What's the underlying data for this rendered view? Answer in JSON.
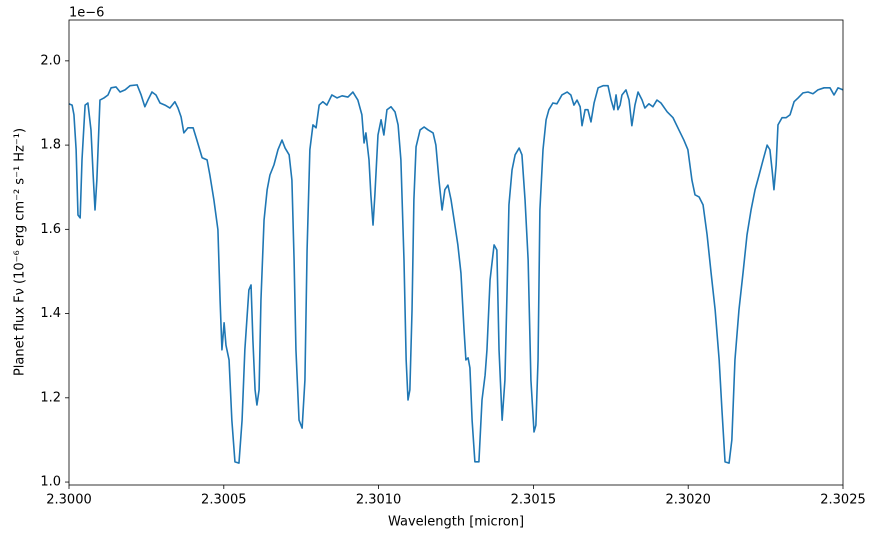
{
  "chart_data": {
    "type": "line",
    "xlabel": "Wavelength [micron]",
    "ylabel": "Planet flux Fν (10⁻⁶ erg cm⁻² s⁻¹ Hz⁻¹)",
    "y_offset_text": "1e−6",
    "color": "#1f77b4",
    "xlim": [
      2.3,
      2.3025
    ],
    "ylim": [
      0.993,
      2.097
    ],
    "xticks": [
      {
        "value": 2.3,
        "label": "2.3000"
      },
      {
        "value": 2.3005,
        "label": "2.3005"
      },
      {
        "value": 2.301,
        "label": "2.3010"
      },
      {
        "value": 2.3015,
        "label": "2.3015"
      },
      {
        "value": 2.302,
        "label": "2.3020"
      },
      {
        "value": 2.3025,
        "label": "2.3025"
      }
    ],
    "yticks": [
      {
        "value": 1,
        "label": "1.0"
      },
      1.2,
      1.4,
      1.6,
      1.8,
      {
        "value": 2,
        "label": "2.0"
      }
    ],
    "x": [
      2.3,
      2.30001,
      2.300016,
      2.300023,
      2.300029,
      2.300036,
      2.300042,
      2.300052,
      2.300061,
      2.300071,
      2.300078,
      2.300084,
      2.30009,
      2.3001,
      2.300113,
      2.300126,
      2.300136,
      2.300152,
      2.300165,
      2.300181,
      2.300197,
      2.30022,
      2.300233,
      2.300245,
      2.300255,
      2.300268,
      2.300281,
      2.300294,
      2.30031,
      2.300326,
      2.300342,
      2.300352,
      2.300362,
      2.300371,
      2.300384,
      2.300401,
      2.300413,
      2.30043,
      2.300446,
      2.300455,
      2.300468,
      2.300481,
      2.300488,
      2.300494,
      2.300501,
      2.300507,
      2.300517,
      2.300526,
      2.300536,
      2.300549,
      2.300559,
      2.300568,
      2.300581,
      2.300588,
      2.300594,
      2.300601,
      2.300607,
      2.300614,
      2.30062,
      2.30063,
      2.30064,
      2.300649,
      2.300662,
      2.300675,
      2.300688,
      2.300698,
      2.300711,
      2.30072,
      2.300727,
      2.300733,
      2.300743,
      2.300753,
      2.300762,
      2.300769,
      2.300778,
      2.300788,
      2.300798,
      2.300808,
      2.30082,
      2.300833,
      2.300849,
      2.300866,
      2.300882,
      2.300901,
      2.300917,
      2.300933,
      2.300946,
      2.300953,
      2.300959,
      2.300969,
      2.300975,
      2.300982,
      2.300988,
      2.300998,
      2.301008,
      2.301017,
      2.301027,
      2.30104,
      2.301053,
      2.301063,
      2.301072,
      2.301082,
      2.301089,
      2.301095,
      2.301101,
      2.301108,
      2.301114,
      2.301121,
      2.301134,
      2.301147,
      2.30116,
      2.301176,
      2.301185,
      2.301195,
      2.301205,
      2.301214,
      2.301224,
      2.301234,
      2.301244,
      2.301256,
      2.301266,
      2.301276,
      2.301282,
      2.301289,
      2.301295,
      2.301302,
      2.301311,
      2.301324,
      2.301334,
      2.301344,
      2.30135,
      2.30136,
      2.301373,
      2.301382,
      2.301389,
      2.301399,
      2.301408,
      2.301415,
      2.301421,
      2.301431,
      2.301441,
      2.301454,
      2.301463,
      2.301473,
      2.301483,
      2.301492,
      2.301502,
      2.301508,
      2.301515,
      2.301521,
      2.301531,
      2.301541,
      2.30155,
      2.301563,
      2.301576,
      2.301592,
      2.301609,
      2.301621,
      2.301631,
      2.301641,
      2.301651,
      2.301657,
      2.301667,
      2.301676,
      2.301686,
      2.301696,
      2.301709,
      2.301725,
      2.301741,
      2.301751,
      2.30176,
      2.301767,
      2.301773,
      2.30178,
      2.301786,
      2.301799,
      2.301809,
      2.301818,
      2.301828,
      2.301838,
      2.301851,
      2.30186,
      2.301873,
      2.301886,
      2.301899,
      2.301912,
      2.301932,
      2.301951,
      2.30197,
      2.301986,
      2.301999,
      2.302012,
      2.302022,
      2.302035,
      2.302048,
      2.302061,
      2.302074,
      2.302087,
      2.3021,
      2.302109,
      2.302119,
      2.302132,
      2.302141,
      2.302151,
      2.302164,
      2.302177,
      2.30219,
      2.302203,
      2.302216,
      2.302229,
      2.302242,
      2.302255,
      2.302264,
      2.302271,
      2.302277,
      2.302284,
      2.30229,
      2.302303,
      2.302316,
      2.302329,
      2.302342,
      2.302355,
      2.302371,
      2.302387,
      2.302403,
      2.302419,
      2.302439,
      2.302458,
      2.302471,
      2.302484,
      2.3025
    ],
    "values": [
      1.898,
      1.895,
      1.872,
      1.789,
      1.634,
      1.627,
      1.765,
      1.895,
      1.9,
      1.836,
      1.729,
      1.646,
      1.717,
      1.907,
      1.912,
      1.919,
      1.936,
      1.938,
      1.926,
      1.931,
      1.941,
      1.943,
      1.919,
      1.891,
      1.907,
      1.926,
      1.919,
      1.9,
      1.895,
      1.888,
      1.903,
      1.888,
      1.867,
      1.829,
      1.841,
      1.841,
      1.812,
      1.77,
      1.765,
      1.729,
      1.67,
      1.599,
      1.432,
      1.314,
      1.378,
      1.325,
      1.29,
      1.147,
      1.048,
      1.045,
      1.147,
      1.314,
      1.456,
      1.468,
      1.337,
      1.219,
      1.183,
      1.219,
      1.432,
      1.622,
      1.694,
      1.729,
      1.753,
      1.789,
      1.812,
      1.793,
      1.777,
      1.717,
      1.527,
      1.314,
      1.147,
      1.128,
      1.242,
      1.551,
      1.789,
      1.848,
      1.841,
      1.895,
      1.903,
      1.895,
      1.919,
      1.912,
      1.917,
      1.914,
      1.926,
      1.907,
      1.872,
      1.805,
      1.829,
      1.765,
      1.682,
      1.61,
      1.682,
      1.824,
      1.86,
      1.824,
      1.884,
      1.891,
      1.879,
      1.848,
      1.765,
      1.527,
      1.29,
      1.195,
      1.219,
      1.409,
      1.67,
      1.796,
      1.836,
      1.843,
      1.836,
      1.829,
      1.8,
      1.717,
      1.646,
      1.694,
      1.705,
      1.67,
      1.622,
      1.563,
      1.496,
      1.361,
      1.29,
      1.295,
      1.271,
      1.147,
      1.048,
      1.048,
      1.195,
      1.254,
      1.314,
      1.48,
      1.563,
      1.551,
      1.314,
      1.147,
      1.242,
      1.456,
      1.658,
      1.741,
      1.777,
      1.793,
      1.777,
      1.67,
      1.527,
      1.242,
      1.119,
      1.135,
      1.29,
      1.646,
      1.789,
      1.86,
      1.884,
      1.9,
      1.898,
      1.919,
      1.926,
      1.919,
      1.895,
      1.907,
      1.891,
      1.846,
      1.884,
      1.884,
      1.855,
      1.9,
      1.936,
      1.941,
      1.941,
      1.907,
      1.884,
      1.919,
      1.884,
      1.895,
      1.919,
      1.931,
      1.907,
      1.846,
      1.895,
      1.926,
      1.907,
      1.888,
      1.898,
      1.891,
      1.907,
      1.9,
      1.879,
      1.865,
      1.836,
      1.812,
      1.789,
      1.717,
      1.682,
      1.677,
      1.658,
      1.587,
      1.496,
      1.409,
      1.29,
      1.171,
      1.048,
      1.045,
      1.1,
      1.29,
      1.409,
      1.496,
      1.587,
      1.646,
      1.694,
      1.729,
      1.765,
      1.8,
      1.789,
      1.741,
      1.694,
      1.753,
      1.848,
      1.865,
      1.865,
      1.872,
      1.903,
      1.912,
      1.924,
      1.926,
      1.922,
      1.931,
      1.936,
      1.936,
      1.919,
      1.936,
      1.931
    ]
  }
}
